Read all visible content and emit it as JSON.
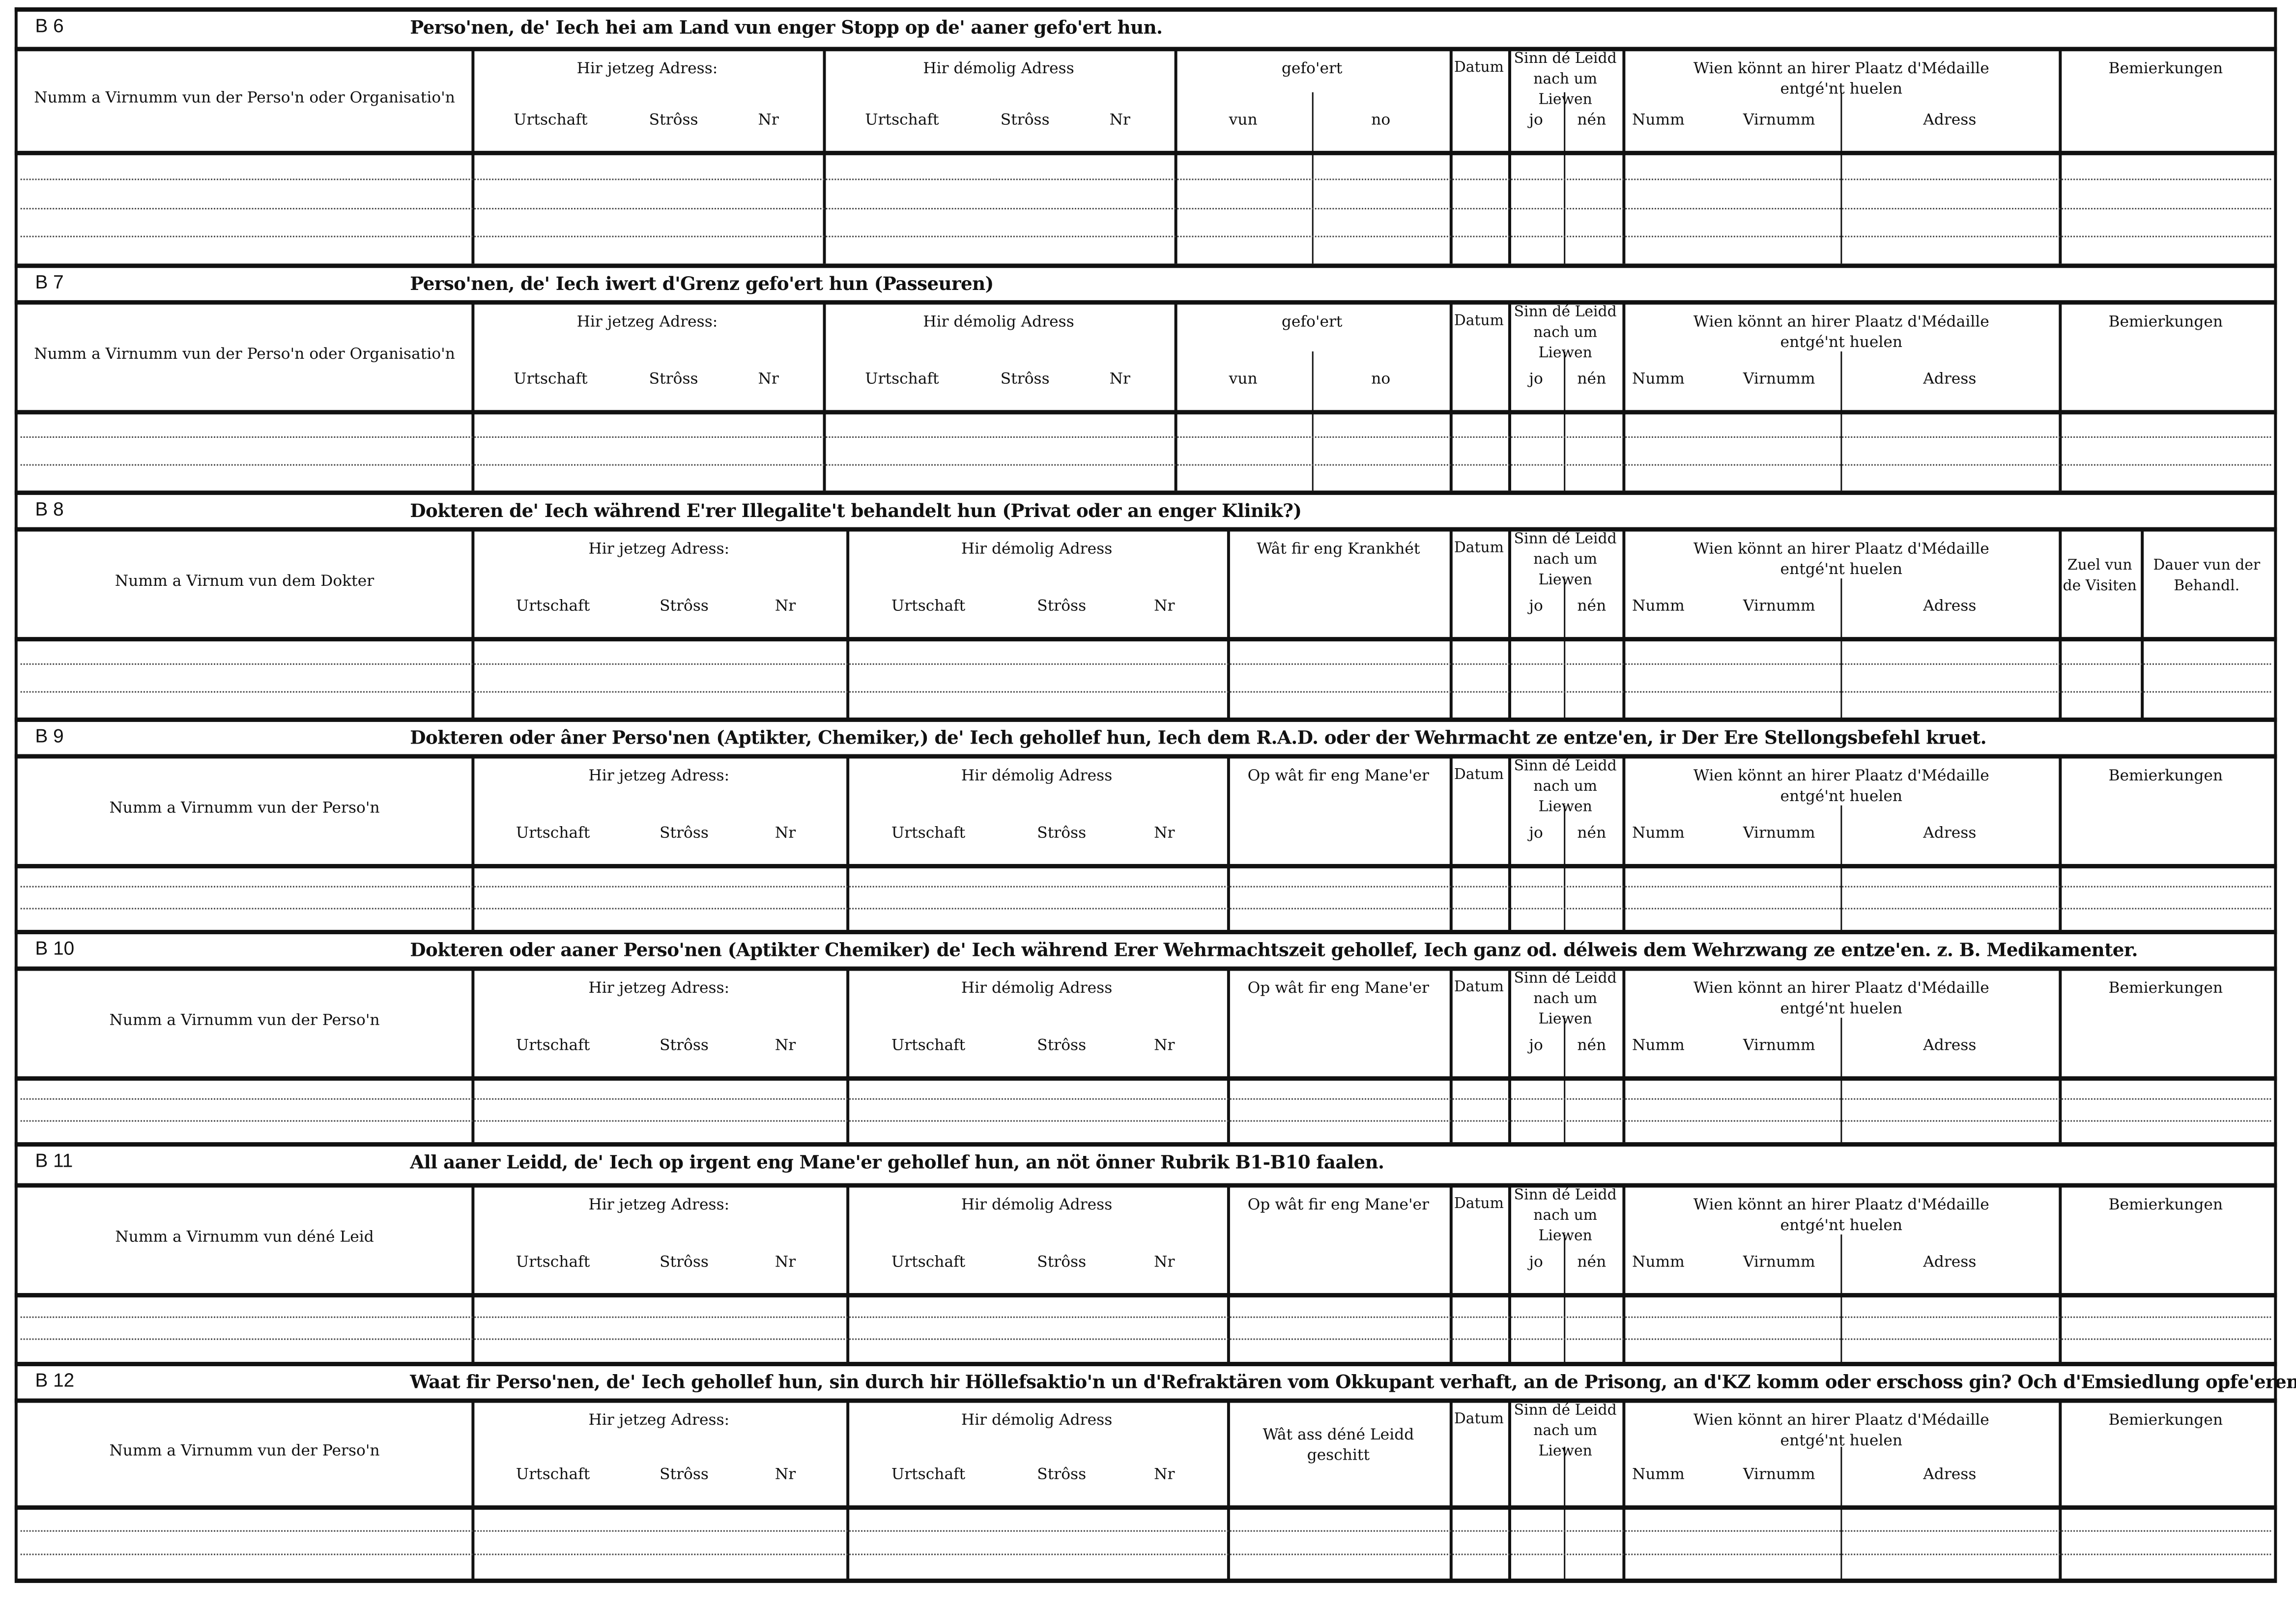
{
  "common": {
    "addr_now": "Hir jetzeg Adress:",
    "addr_then": "Hir démolig Adress",
    "addr_sub": [
      "Urtschaft",
      "Strôss",
      "Nr"
    ],
    "datum": "Datum",
    "sinn": "Sinn dé Leidd nach um Liewen",
    "sinn_sub": [
      "jo",
      "nén"
    ],
    "wien": "Wien könnt an hirer Plaatz d'Médaille entgé'nt huelen",
    "wien_sub": [
      "Numm",
      "Virnumm",
      "Adress"
    ],
    "bemierkungen": "Bemierkungen"
  },
  "sections": [
    {
      "code": "B 6",
      "title": "Perso'nen, de' Iech hei am Land vun enger Stopp op de' aaner gefo'ert hun.",
      "name_col": "Numm a Virnumm vun der Perso'n oder Organisatio'n",
      "col4": "gefo'ert",
      "col4_sub": [
        "vun",
        "no"
      ]
    },
    {
      "code": "B 7",
      "title": "Perso'nen, de' Iech iwert d'Grenz gefo'ert hun (Passeuren)",
      "name_col": "Numm a Virnumm vun der Perso'n oder Organisatio'n",
      "col4": "gefo'ert",
      "col4_sub": [
        "vun",
        "no"
      ]
    },
    {
      "code": "B 8",
      "title": "Dokteren de' Iech während E'rer Illegalite't behandelt hun (Privat oder an enger Klinik?)",
      "name_col": "Numm a Virnum vun dem Dokter",
      "col4": "Wât fir eng Krankhét",
      "extra": [
        "Zuel vun de Visiten",
        "Dauer vun der Behandl."
      ]
    },
    {
      "code": "B 9",
      "title": "Dokteren oder âner Perso'nen (Aptikter, Chemiker,) de' Iech gehollef hun, Iech dem R.A.D. oder der Wehrmacht ze entze'en, ir Der Ere Stellongsbefehl kruet.",
      "name_col": "Numm a Virnumm vun der Perso'n",
      "col4": "Op wât fir eng Mane'er"
    },
    {
      "code": "B 10",
      "title": "Dokteren oder aaner Perso'nen (Aptikter Chemiker) de' Iech während Erer Wehrmachtszeit gehollef, Iech ganz od. délweis dem Wehrzwang ze entze'en. z. B. Medikamenter.",
      "name_col": "Numm a Virnumm vun der Perso'n",
      "col4": "Op wât fir eng Mane'er"
    },
    {
      "code": "B 11",
      "title": "All aaner Leidd, de' Iech op irgent eng Mane'er gehollef hun, an nöt önner Rubrik B1-B10 faalen.",
      "name_col": "Numm a Virnumm vun déné Leid",
      "col4": "Op wât fir eng Mane'er"
    },
    {
      "code": "B 12",
      "title": "Waat fir Perso'nen, de' Iech gehollef hun, sin durch hir Höllefsaktio'n un d'Refraktären vom Okkupant verhaft, an de Prisong, an d'KZ komm oder erschoss gin? Och d'Emsiedlung opfe'eren.",
      "name_col": "Numm a Virnumm vun der Perso'n",
      "col4": "Wât ass déné Leidd geschitt",
      "no_sinn_sub": true
    }
  ]
}
